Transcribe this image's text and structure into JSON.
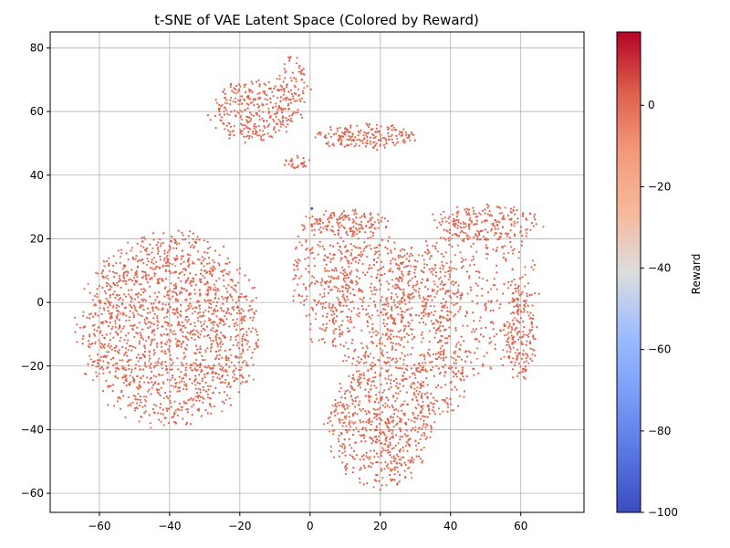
{
  "chart_data": {
    "type": "scatter",
    "title": "t-SNE of VAE Latent Space (Colored by Reward)",
    "xlabel": "",
    "ylabel": "",
    "xlim": [
      -74,
      78
    ],
    "ylim": [
      -66,
      85
    ],
    "x_ticks": [
      -60,
      -40,
      -20,
      0,
      20,
      40,
      60
    ],
    "y_ticks": [
      -60,
      -40,
      -20,
      0,
      20,
      40,
      60,
      80
    ],
    "x_tick_labels": [
      "−60",
      "−40",
      "−20",
      "0",
      "20",
      "40",
      "60"
    ],
    "y_tick_labels": [
      "−60",
      "−40",
      "−20",
      "0",
      "20",
      "40",
      "60",
      "80"
    ],
    "grid": true,
    "typical_point_color": "#e0664c",
    "outlier_color": "#3b4cc0",
    "outlier": {
      "x": 0.5,
      "y": 29.5
    },
    "clusters": [
      {
        "name": "left-blob",
        "cx": -40,
        "cy": -9,
        "rx": 25,
        "ry": 30,
        "n": 1700,
        "shape": "ellipse"
      },
      {
        "name": "right-central",
        "cx": 17,
        "cy": 0,
        "rx": 14,
        "ry": 22,
        "n": 450,
        "shape": "ellipse"
      },
      {
        "name": "right-mid",
        "cx": 32,
        "cy": -3,
        "rx": 12,
        "ry": 22,
        "n": 300,
        "shape": "ellipse"
      },
      {
        "name": "right-band",
        "cx": 48,
        "cy": 2,
        "rx": 17,
        "ry": 26,
        "n": 380,
        "shape": "ellipse"
      },
      {
        "name": "left-center-stripe",
        "cx": 4,
        "cy": 8,
        "rx": 9,
        "ry": 20,
        "n": 200,
        "shape": "ellipse"
      },
      {
        "name": "bottom-blob",
        "cx": 20,
        "cy": -38,
        "rx": 15,
        "ry": 20,
        "n": 650,
        "shape": "ellipse"
      },
      {
        "name": "bottom-right-arm",
        "cx": 37,
        "cy": -25,
        "rx": 8,
        "ry": 12,
        "n": 120,
        "shape": "ellipse"
      },
      {
        "name": "top-left-arc",
        "cx": -16,
        "cy": 60,
        "rx": 12,
        "ry": 10,
        "n": 300,
        "shape": "ellipse"
      },
      {
        "name": "top-arm",
        "cx": -5,
        "cy": 66,
        "rx": 5,
        "ry": 11,
        "n": 90,
        "shape": "ellipse"
      },
      {
        "name": "top-middle-strip",
        "cx": 16,
        "cy": 52,
        "rx": 14,
        "ry": 4,
        "n": 200,
        "shape": "ellipse"
      },
      {
        "name": "upper-right-arc",
        "cx": 50,
        "cy": 25,
        "rx": 16,
        "ry": 6,
        "n": 200,
        "shape": "ellipse"
      },
      {
        "name": "mid-stripe",
        "cx": 10,
        "cy": 25,
        "rx": 13,
        "ry": 4,
        "n": 150,
        "shape": "ellipse"
      },
      {
        "name": "small-clump",
        "cx": -4,
        "cy": 44,
        "rx": 4,
        "ry": 2,
        "n": 30,
        "shape": "ellipse"
      },
      {
        "name": "far-right-strip",
        "cx": 60,
        "cy": -10,
        "rx": 4,
        "ry": 15,
        "n": 150,
        "shape": "ellipse"
      }
    ],
    "colorbar": {
      "label": "Reward",
      "min": -100,
      "max": 18,
      "ticks": [
        0,
        -20,
        -40,
        -60,
        -80,
        -100
      ],
      "tick_labels": [
        "0",
        "−20",
        "−40",
        "−60",
        "−80",
        "−100"
      ],
      "colormap": "coolwarm"
    }
  }
}
